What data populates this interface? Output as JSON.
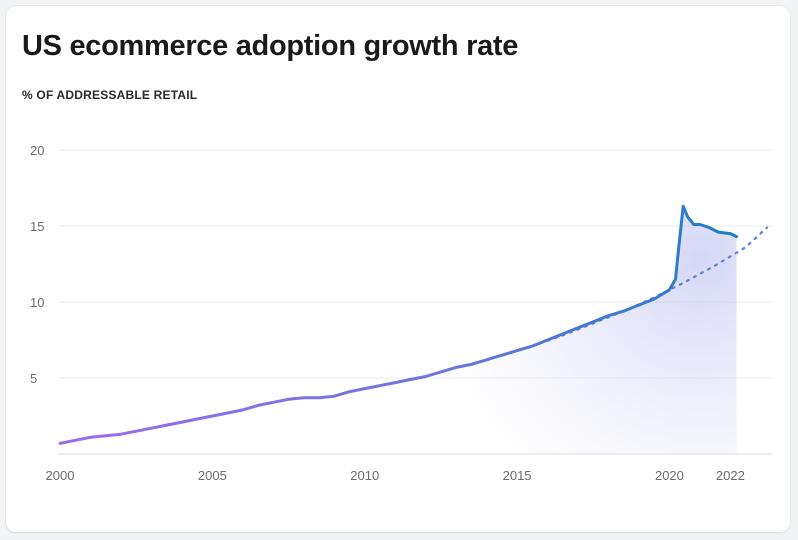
{
  "chart_data": {
    "type": "line",
    "title": "US ecommerce adoption growth rate",
    "subtitle": "% OF ADDRESSABLE RETAIL",
    "xlabel": "",
    "ylabel": "",
    "xlim": [
      2000,
      2023.3
    ],
    "ylim": [
      0,
      20
    ],
    "grid": true,
    "y_ticks": [
      {
        "value": 5,
        "label": "5"
      },
      {
        "value": 10,
        "label": "10"
      },
      {
        "value": 15,
        "label": "15"
      },
      {
        "value": 20,
        "label": "20"
      }
    ],
    "x_ticks": [
      {
        "value": 2000,
        "label": "2000"
      },
      {
        "value": 2005,
        "label": "2005"
      },
      {
        "value": 2010,
        "label": "2010"
      },
      {
        "value": 2015,
        "label": "2015"
      },
      {
        "value": 2020,
        "label": "2020"
      },
      {
        "value": 2022,
        "label": "2022"
      }
    ],
    "series": [
      {
        "style": "solid",
        "color_start": "#9b6bf0",
        "color_end": "#1e7dc8",
        "x": [
          2000.0,
          2000.5,
          2001.0,
          2001.5,
          2002.0,
          2002.5,
          2003.0,
          2003.5,
          2004.0,
          2004.5,
          2005.0,
          2005.5,
          2006.0,
          2006.5,
          2007.0,
          2007.5,
          2008.0,
          2008.5,
          2009.0,
          2009.5,
          2010.0,
          2010.5,
          2011.0,
          2011.5,
          2012.0,
          2012.5,
          2013.0,
          2013.5,
          2014.0,
          2014.5,
          2015.0,
          2015.5,
          2016.0,
          2016.5,
          2017.0,
          2017.5,
          2018.0,
          2018.5,
          2019.0,
          2019.5,
          2020.0,
          2020.2,
          2020.3,
          2020.45,
          2020.6,
          2020.8,
          2021.0,
          2021.3,
          2021.6,
          2022.0,
          2022.2
        ],
        "values": [
          0.7,
          0.9,
          1.1,
          1.2,
          1.3,
          1.5,
          1.7,
          1.9,
          2.1,
          2.3,
          2.5,
          2.7,
          2.9,
          3.2,
          3.4,
          3.6,
          3.7,
          3.7,
          3.8,
          4.1,
          4.3,
          4.5,
          4.7,
          4.9,
          5.1,
          5.4,
          5.7,
          5.9,
          6.2,
          6.5,
          6.8,
          7.1,
          7.5,
          7.9,
          8.3,
          8.7,
          9.1,
          9.4,
          9.8,
          10.2,
          10.8,
          11.5,
          13.5,
          16.3,
          15.6,
          15.1,
          15.1,
          14.9,
          14.6,
          14.5,
          14.3
        ]
      },
      {
        "style": "dotted",
        "color": "#5b84d6",
        "x": [
          2015.5,
          2016.5,
          2017.5,
          2018.5,
          2019.5,
          2020.5,
          2021.5,
          2022.5,
          2023.2
        ],
        "values": [
          7.1,
          7.8,
          8.6,
          9.4,
          10.3,
          11.3,
          12.4,
          13.6,
          14.9
        ]
      }
    ]
  }
}
